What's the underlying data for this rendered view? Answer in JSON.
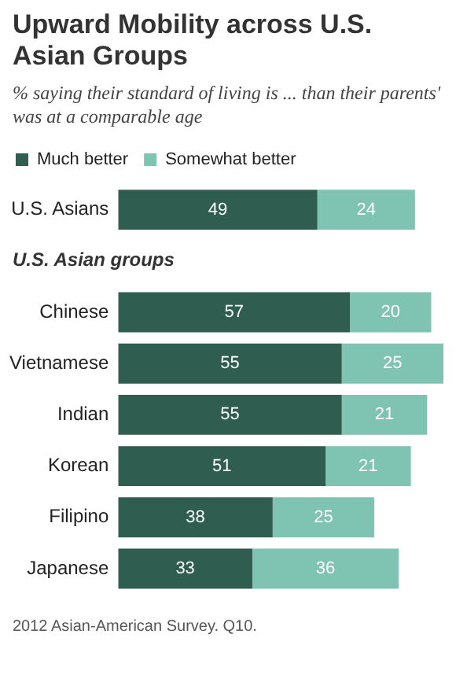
{
  "chart_data": {
    "type": "bar",
    "orientation": "horizontal",
    "stacked": true,
    "title": "Upward Mobility across U.S. Asian Groups",
    "subtitle": "% saying their standard of living is ... than their parents' was at a comparable age",
    "categories": [
      "U.S. Asians",
      null,
      "Chinese",
      "Vietnamese",
      "Indian",
      "Korean",
      "Filipino",
      "Japanese"
    ],
    "series": [
      {
        "name": "Much better",
        "color": "#2f5e50",
        "values": [
          49,
          null,
          57,
          55,
          55,
          51,
          38,
          33
        ]
      },
      {
        "name": "Somewhat better",
        "color": "#7fc3b3",
        "values": [
          24,
          null,
          20,
          25,
          21,
          21,
          25,
          36
        ]
      }
    ],
    "data_labels": true,
    "legend": "top left",
    "grid": false,
    "tick_labels": "y",
    "annotations": [
      "U.S. Asian groups",
      "2012 Asian-American Survey. Q10."
    ]
  }
}
